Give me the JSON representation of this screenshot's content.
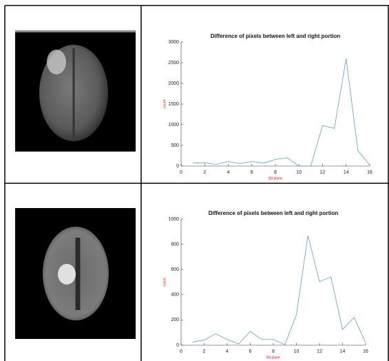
{
  "chart_data": [
    {
      "type": "line",
      "title": "Difference of pixels between left and right portion",
      "x_label": "Bit plane",
      "y_label": "count",
      "x": [
        1,
        2,
        3,
        4,
        5,
        6,
        7,
        8,
        9,
        10,
        11,
        12,
        13,
        14,
        15,
        16
      ],
      "series": [
        {
          "color": "#5b9bd5",
          "values": [
            70,
            80,
            40,
            110,
            60,
            110,
            70,
            160,
            200,
            0,
            0,
            980,
            910,
            2600,
            370,
            30
          ]
        }
      ],
      "xlim": [
        0,
        16
      ],
      "xticks": [
        0,
        2,
        4,
        6,
        8,
        10,
        12,
        14,
        16
      ],
      "ylim": [
        0,
        3000
      ],
      "yticks": [
        0,
        500,
        1000,
        1500,
        2000,
        2500,
        3000
      ]
    },
    {
      "type": "line",
      "title": "Difference of pixels between left and right portion",
      "x_label": "Bit plane",
      "y_label": "count",
      "x": [
        1,
        2,
        3,
        4,
        5,
        6,
        7,
        8,
        9,
        10,
        11,
        12,
        13,
        14,
        15,
        16
      ],
      "series": [
        {
          "color": "#5b9bd5",
          "values": [
            25,
            40,
            90,
            45,
            10,
            110,
            45,
            45,
            5,
            240,
            870,
            505,
            540,
            125,
            220,
            20
          ]
        }
      ],
      "xlim": [
        0,
        16
      ],
      "xticks": [
        0,
        2,
        4,
        6,
        8,
        10,
        12,
        14,
        16
      ],
      "ylim": [
        0,
        1000
      ],
      "yticks": [
        0,
        200,
        400,
        600,
        800,
        1000
      ]
    }
  ]
}
